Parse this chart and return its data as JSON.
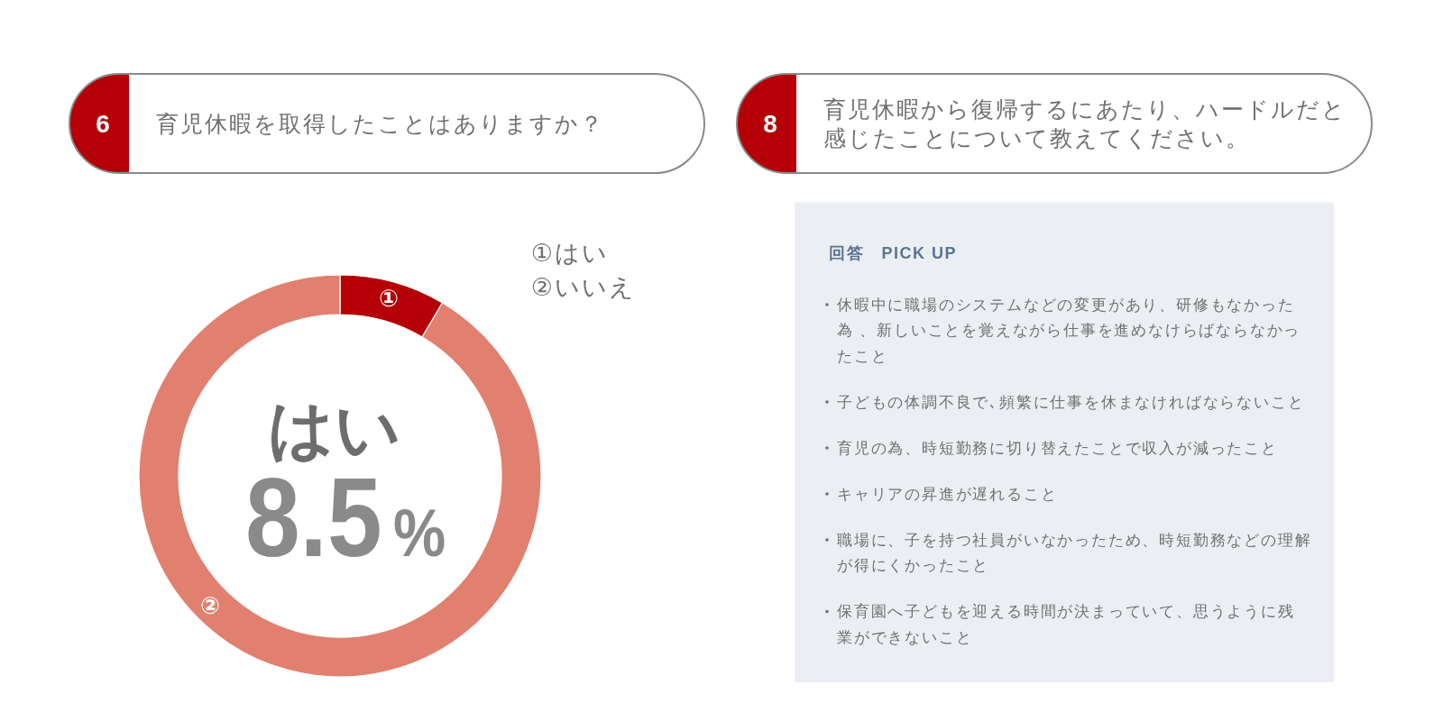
{
  "chart_data": [
    {
      "type": "donut",
      "title": "育児休暇を取得したことはありますか？",
      "categories": [
        "①",
        "②"
      ],
      "values": [
        8.5,
        91.5
      ],
      "colors": [
        "#b40006",
        "#e1806f"
      ],
      "annotations": [
        "6",
        "①はい",
        "②いいえ",
        "はい",
        "8.5%"
      ]
    },
    {
      "type": "other",
      "title": "育児休暇から復帰するにあたり、ハードルだと感じたことについて教えてください。",
      "annotations": [
        "8",
        "回答　PICK UP",
        "休暇中に職場のシステムなどの変更があり、研修もなかった為 、新しいことを覚えながら仕事を進めなけらばならなかったこと",
        "子どもの体調不良で､頻繁に仕事を休まなければならないこと",
        "育児の為、時短勤務に切り替えたことで収入が減ったこと",
        "キャリアの昇進が遅れること",
        "職場に、子を持つ社員がいなかったため、時短勤務などの理解が得にくかったこと",
        "保育園へ子どもを迎える時間が決まっていて、思うように残業ができないこと"
      ]
    }
  ]
}
